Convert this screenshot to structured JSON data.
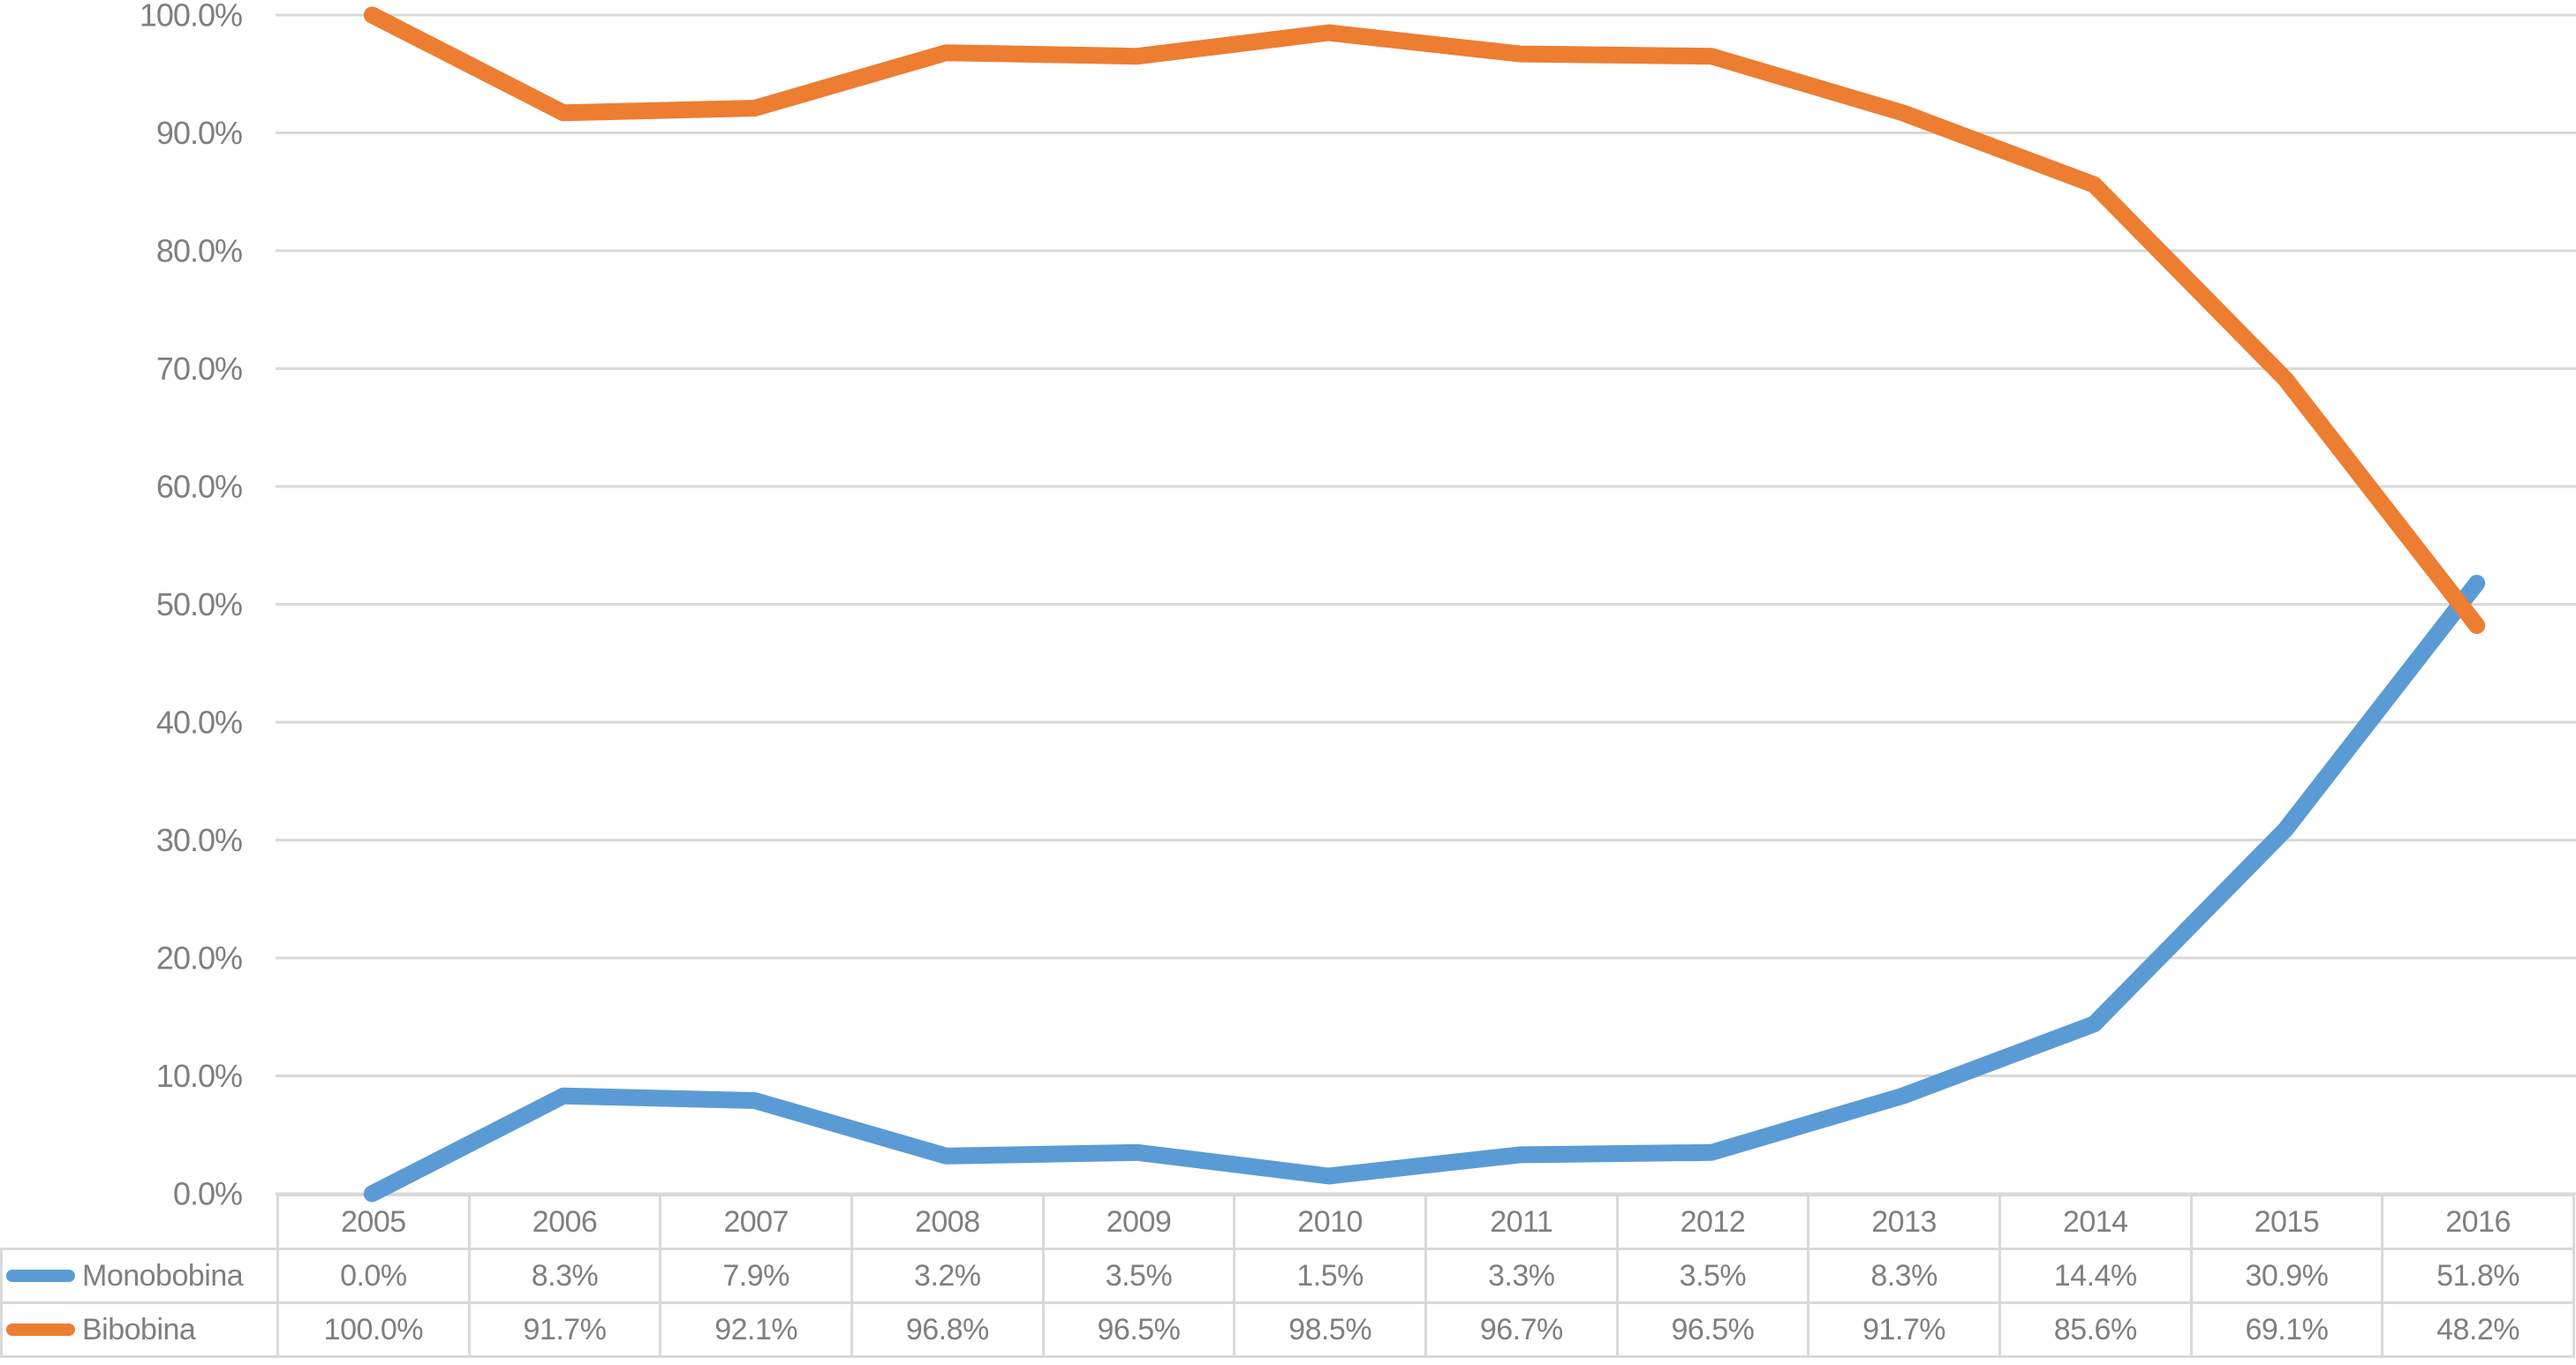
{
  "colors": {
    "series_blue": "#5B9BD5",
    "series_orange": "#ED7D31",
    "gridline": "#D9D9D9",
    "table_border": "#D9D9D9",
    "text": "#7F7F7F"
  },
  "chart_data": {
    "type": "line",
    "title": "",
    "xlabel": "",
    "ylabel": "",
    "grid": true,
    "has_data_table": true,
    "legend_position": "data-table-left",
    "categories": [
      "2005",
      "2006",
      "2007",
      "2008",
      "2009",
      "2010",
      "2011",
      "2012",
      "2013",
      "2014",
      "2015",
      "2016"
    ],
    "series": [
      {
        "name": "Monobobina",
        "color": "#5B9BD5",
        "values": [
          0.0,
          8.3,
          7.9,
          3.2,
          3.5,
          1.5,
          3.3,
          3.5,
          8.3,
          14.4,
          30.9,
          51.8
        ]
      },
      {
        "name": "Bibobina",
        "color": "#ED7D31",
        "values": [
          100.0,
          91.7,
          92.1,
          96.8,
          96.5,
          98.5,
          96.7,
          96.5,
          91.7,
          85.6,
          69.1,
          48.2
        ]
      }
    ],
    "ylim": [
      0,
      100
    ],
    "ytick_step": 10,
    "ytick_labels": [
      "0.0%",
      "10.0%",
      "20.0%",
      "30.0%",
      "40.0%",
      "50.0%",
      "60.0%",
      "70.0%",
      "80.0%",
      "90.0%",
      "100.0%"
    ],
    "value_decimals": 1,
    "value_suffix": "%"
  }
}
